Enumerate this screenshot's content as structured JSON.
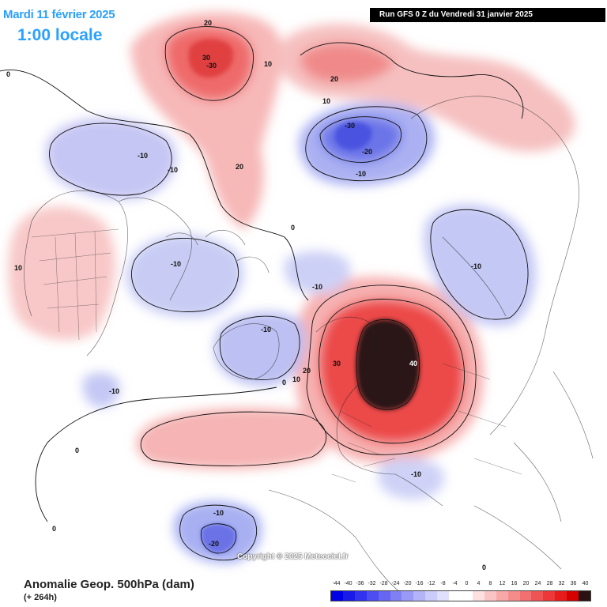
{
  "header": {
    "date": "Mardi 11 février 2025",
    "local_time": "1:00 locale",
    "run_info": "Run GFS 0 Z du Vendredi 31 janvier 2025"
  },
  "footer": {
    "title": "Anomalie Geop. 500hPa (dam)",
    "lead": "(+ 264h)",
    "copyright": "Copyright © 2025 Meteociel.fr"
  },
  "legend": {
    "ticks": [
      "-44",
      "-40",
      "-36",
      "-32",
      "-28",
      "-24",
      "-20",
      "-16",
      "-12",
      "-8",
      "-4",
      "0",
      "4",
      "8",
      "12",
      "16",
      "20",
      "24",
      "28",
      "32",
      "36",
      "40"
    ],
    "colors": [
      "#0000e6",
      "#1a1ae8",
      "#3333ee",
      "#4d4df0",
      "#6666f2",
      "#8080f4",
      "#9999f6",
      "#b3b3f8",
      "#ccccfa",
      "#e0e0fc",
      "#ffffff",
      "#ffffff",
      "#fde0e0",
      "#fbc4c4",
      "#f8a8a8",
      "#f58c8c",
      "#f27070",
      "#ef5454",
      "#ec3838",
      "#e61c1c",
      "#d60000",
      "#2a1212"
    ]
  },
  "contour_labels": [
    {
      "text": "20"
    },
    {
      "text": "30"
    },
    {
      "text": "-30"
    },
    {
      "text": "10"
    },
    {
      "text": "20"
    },
    {
      "text": "10"
    },
    {
      "text": "-30"
    },
    {
      "text": "-20"
    },
    {
      "text": "-10"
    },
    {
      "text": "-10"
    },
    {
      "text": "-10"
    },
    {
      "text": "20"
    },
    {
      "text": "0"
    },
    {
      "text": "10"
    },
    {
      "text": "-10"
    },
    {
      "text": "-10"
    },
    {
      "text": "-10"
    },
    {
      "text": "-10"
    },
    {
      "text": "30"
    },
    {
      "text": "40"
    },
    {
      "text": "20"
    },
    {
      "text": "10"
    },
    {
      "text": "0"
    },
    {
      "text": "-10"
    },
    {
      "text": "0"
    },
    {
      "text": "-10"
    },
    {
      "text": "-10"
    },
    {
      "text": "-20"
    },
    {
      "text": "0"
    },
    {
      "text": "0"
    },
    {
      "text": "0"
    }
  ]
}
